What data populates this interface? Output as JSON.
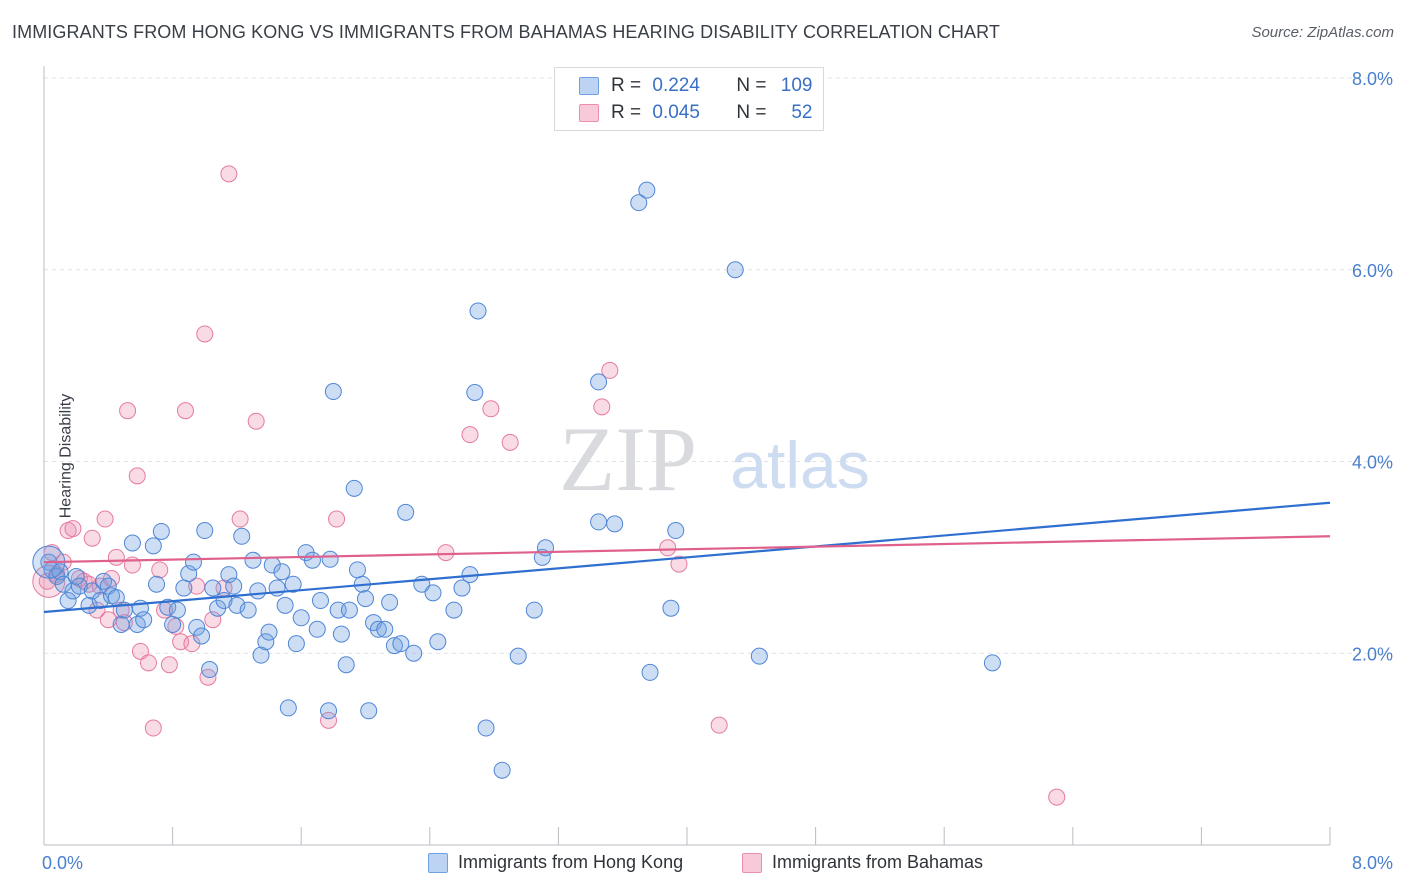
{
  "header": {
    "title": "IMMIGRANTS FROM HONG KONG VS IMMIGRANTS FROM BAHAMAS HEARING DISABILITY CORRELATION CHART",
    "source": "Source: ZipAtlas.com"
  },
  "watermark": {
    "zip": "ZIP",
    "atlas": "atlas"
  },
  "legend": {
    "rows": [
      {
        "r_label": "R =",
        "r_value": "0.224",
        "n_label": "N =",
        "n_value": "109",
        "color": "#6fa0e0"
      },
      {
        "r_label": "R =",
        "r_value": "0.045",
        "n_label": "N =",
        "n_value": "52",
        "color": "#ec8fb0"
      }
    ]
  },
  "bottom_legend": {
    "series1": "Immigrants from Hong Kong",
    "series2": "Immigrants from Bahamas"
  },
  "chart_data": {
    "type": "scatter",
    "title": "IMMIGRANTS FROM HONG KONG VS IMMIGRANTS FROM BAHAMAS HEARING DISABILITY CORRELATION CHART",
    "xlabel": "",
    "ylabel": "Hearing Disability",
    "xlim": [
      0,
      8
    ],
    "ylim": [
      0,
      8
    ],
    "x_tick_labels": [
      "0.0%",
      "8.0%"
    ],
    "y_ticks": [
      2,
      4,
      6,
      8
    ],
    "y_tick_labels": [
      "2.0%",
      "4.0%",
      "6.0%",
      "8.0%"
    ],
    "grid": true,
    "legend_position": "top-center",
    "series": [
      {
        "name": "Immigrants from Hong Kong",
        "color": "#6fa0e0",
        "stroke": "#4f86d6",
        "trend": {
          "x": [
            0,
            8
          ],
          "y": [
            2.43,
            3.57
          ],
          "color": "#2f6fd0"
        },
        "points": [
          [
            0.03,
            2.95
          ],
          [
            0.05,
            2.87
          ],
          [
            0.08,
            2.8
          ],
          [
            0.1,
            2.85
          ],
          [
            0.12,
            2.72
          ],
          [
            0.15,
            2.55
          ],
          [
            0.18,
            2.65
          ],
          [
            0.2,
            2.8
          ],
          [
            0.22,
            2.7
          ],
          [
            0.28,
            2.5
          ],
          [
            0.3,
            2.65
          ],
          [
            0.35,
            2.55
          ],
          [
            0.37,
            2.75
          ],
          [
            0.4,
            2.7
          ],
          [
            0.42,
            2.6
          ],
          [
            0.45,
            2.58
          ],
          [
            0.48,
            2.3
          ],
          [
            0.5,
            2.45
          ],
          [
            0.55,
            3.15
          ],
          [
            0.58,
            2.3
          ],
          [
            0.6,
            2.47
          ],
          [
            0.62,
            2.35
          ],
          [
            0.68,
            3.12
          ],
          [
            0.7,
            2.72
          ],
          [
            0.73,
            3.27
          ],
          [
            0.77,
            2.48
          ],
          [
            0.8,
            2.3
          ],
          [
            0.83,
            2.45
          ],
          [
            0.87,
            2.68
          ],
          [
            0.9,
            2.83
          ],
          [
            0.93,
            2.95
          ],
          [
            0.95,
            2.27
          ],
          [
            0.98,
            2.18
          ],
          [
            1.0,
            3.28
          ],
          [
            1.03,
            1.83
          ],
          [
            1.05,
            2.68
          ],
          [
            1.08,
            2.47
          ],
          [
            1.12,
            2.55
          ],
          [
            1.15,
            2.82
          ],
          [
            1.18,
            2.7
          ],
          [
            1.2,
            2.5
          ],
          [
            1.23,
            3.22
          ],
          [
            1.27,
            2.45
          ],
          [
            1.3,
            2.97
          ],
          [
            1.33,
            2.65
          ],
          [
            1.35,
            1.98
          ],
          [
            1.38,
            2.12
          ],
          [
            1.4,
            2.22
          ],
          [
            1.42,
            2.92
          ],
          [
            1.45,
            2.68
          ],
          [
            1.48,
            2.85
          ],
          [
            1.5,
            2.5
          ],
          [
            1.52,
            1.43
          ],
          [
            1.55,
            2.72
          ],
          [
            1.57,
            2.1
          ],
          [
            1.6,
            2.37
          ],
          [
            1.63,
            3.05
          ],
          [
            1.67,
            2.97
          ],
          [
            1.7,
            2.25
          ],
          [
            1.72,
            2.55
          ],
          [
            1.77,
            1.4
          ],
          [
            1.78,
            2.98
          ],
          [
            1.8,
            4.73
          ],
          [
            1.83,
            2.45
          ],
          [
            1.85,
            2.2
          ],
          [
            1.88,
            1.88
          ],
          [
            1.9,
            2.45
          ],
          [
            1.93,
            3.72
          ],
          [
            1.95,
            2.87
          ],
          [
            1.98,
            2.72
          ],
          [
            2.0,
            2.57
          ],
          [
            2.02,
            1.4
          ],
          [
            2.05,
            2.32
          ],
          [
            2.08,
            2.25
          ],
          [
            2.12,
            2.25
          ],
          [
            2.15,
            2.53
          ],
          [
            2.18,
            2.08
          ],
          [
            2.22,
            2.1
          ],
          [
            2.25,
            3.47
          ],
          [
            2.3,
            2.0
          ],
          [
            2.35,
            2.72
          ],
          [
            2.42,
            2.63
          ],
          [
            2.45,
            2.12
          ],
          [
            2.55,
            2.45
          ],
          [
            2.6,
            2.68
          ],
          [
            2.65,
            2.82
          ],
          [
            2.68,
            4.72
          ],
          [
            2.7,
            5.57
          ],
          [
            2.75,
            1.22
          ],
          [
            2.85,
            0.78
          ],
          [
            2.95,
            1.97
          ],
          [
            3.05,
            2.45
          ],
          [
            3.1,
            3.0
          ],
          [
            3.12,
            3.1
          ],
          [
            3.45,
            4.83
          ],
          [
            3.45,
            3.37
          ],
          [
            3.55,
            3.35
          ],
          [
            3.7,
            6.7
          ],
          [
            3.75,
            6.83
          ],
          [
            3.77,
            1.8
          ],
          [
            3.9,
            2.47
          ],
          [
            3.93,
            3.28
          ],
          [
            4.3,
            6.0
          ],
          [
            4.45,
            1.97
          ],
          [
            5.9,
            1.9
          ]
        ]
      },
      {
        "name": "Immigrants from Bahamas",
        "color": "#ec8fb0",
        "stroke": "#e57aa2",
        "trend": {
          "x": [
            0,
            8
          ],
          "y": [
            2.95,
            3.22
          ],
          "color": "#e0608c"
        },
        "points": [
          [
            0.02,
            2.75
          ],
          [
            0.05,
            3.05
          ],
          [
            0.08,
            2.82
          ],
          [
            0.12,
            2.95
          ],
          [
            0.15,
            3.28
          ],
          [
            0.18,
            3.3
          ],
          [
            0.22,
            2.78
          ],
          [
            0.25,
            2.75
          ],
          [
            0.28,
            2.72
          ],
          [
            0.3,
            3.2
          ],
          [
            0.33,
            2.45
          ],
          [
            0.35,
            2.7
          ],
          [
            0.38,
            3.4
          ],
          [
            0.4,
            2.35
          ],
          [
            0.42,
            2.78
          ],
          [
            0.45,
            3.0
          ],
          [
            0.48,
            2.45
          ],
          [
            0.5,
            2.32
          ],
          [
            0.52,
            4.53
          ],
          [
            0.55,
            2.92
          ],
          [
            0.58,
            3.85
          ],
          [
            0.6,
            2.02
          ],
          [
            0.65,
            1.9
          ],
          [
            0.68,
            1.22
          ],
          [
            0.72,
            2.87
          ],
          [
            0.75,
            2.45
          ],
          [
            0.78,
            1.88
          ],
          [
            0.82,
            2.28
          ],
          [
            0.85,
            2.12
          ],
          [
            0.88,
            4.53
          ],
          [
            0.92,
            2.1
          ],
          [
            0.95,
            2.7
          ],
          [
            1.0,
            5.33
          ],
          [
            1.02,
            1.75
          ],
          [
            1.05,
            2.35
          ],
          [
            1.12,
            2.68
          ],
          [
            1.15,
            7.0
          ],
          [
            1.22,
            3.4
          ],
          [
            1.32,
            4.42
          ],
          [
            1.77,
            1.3
          ],
          [
            1.82,
            3.4
          ],
          [
            2.5,
            3.05
          ],
          [
            2.65,
            4.28
          ],
          [
            2.78,
            4.55
          ],
          [
            2.9,
            4.2
          ],
          [
            3.47,
            4.57
          ],
          [
            3.52,
            4.95
          ],
          [
            3.88,
            3.1
          ],
          [
            3.95,
            2.93
          ],
          [
            4.2,
            1.25
          ],
          [
            6.3,
            0.5
          ]
        ]
      }
    ]
  }
}
